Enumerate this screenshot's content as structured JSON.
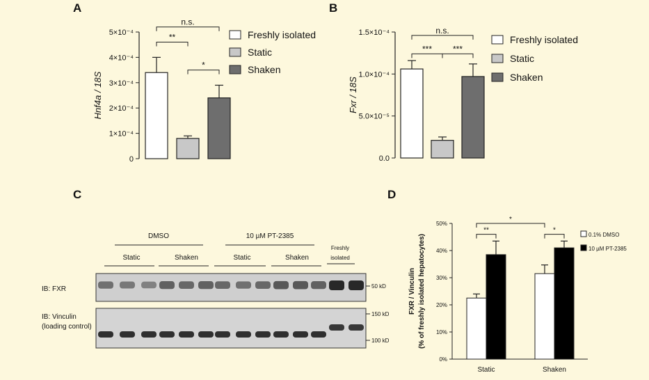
{
  "panels": {
    "a": {
      "letter": "A"
    },
    "b": {
      "letter": "B"
    },
    "c": {
      "letter": "C"
    },
    "d": {
      "letter": "D"
    }
  },
  "chart_data": [
    {
      "id": "A",
      "type": "bar",
      "ylabel": "Hnf4a / 18S",
      "ylim": [
        0,
        0.0005
      ],
      "yticks": [
        {
          "value": 0,
          "label": "0"
        },
        {
          "value": 0.0001,
          "label": "1×10⁻⁴"
        },
        {
          "value": 0.0002,
          "label": "2×10⁻⁴"
        },
        {
          "value": 0.0003,
          "label": "3×10⁻⁴"
        },
        {
          "value": 0.0004,
          "label": "4×10⁻⁴"
        },
        {
          "value": 0.0005,
          "label": "5×10⁻⁴"
        }
      ],
      "categories": [
        "Freshly isolated",
        "Static",
        "Shaken"
      ],
      "values": [
        0.00034,
        8e-05,
        0.00024
      ],
      "errors": [
        6e-05,
        1e-05,
        5e-05
      ],
      "colors": [
        "#ffffff",
        "#c8c8c8",
        "#6e6e6e"
      ],
      "legend": [
        "Freshly isolated",
        "Static",
        "Shaken"
      ],
      "significance": [
        {
          "from": 0,
          "to": 1,
          "label": "**",
          "level": 0.00046
        },
        {
          "from": 1,
          "to": 2,
          "label": "*",
          "level": 0.00035
        },
        {
          "from": 0,
          "to": 2,
          "label": "n.s.",
          "level": 0.00052
        }
      ]
    },
    {
      "id": "B",
      "type": "bar",
      "ylabel": "Fxr / 18S",
      "ylim": [
        0,
        0.00015
      ],
      "yticks": [
        {
          "value": 0,
          "label": "0.0"
        },
        {
          "value": 5e-05,
          "label": "5.0×10⁻⁵"
        },
        {
          "value": 0.0001,
          "label": "1.0×10⁻⁴"
        },
        {
          "value": 0.00015,
          "label": "1.5×10⁻⁴"
        }
      ],
      "categories": [
        "Freshly isolated",
        "Static",
        "Shaken"
      ],
      "values": [
        0.000106,
        2.1e-05,
        9.7e-05
      ],
      "errors": [
        1e-05,
        4e-06,
        1.5e-05
      ],
      "colors": [
        "#ffffff",
        "#c8c8c8",
        "#6e6e6e"
      ],
      "legend": [
        "Freshly isolated",
        "Static",
        "Shaken"
      ],
      "significance": [
        {
          "from": 0,
          "to": 1,
          "label": "***",
          "level": 0.000124
        },
        {
          "from": 1,
          "to": 2,
          "label": "***",
          "level": 0.000124
        },
        {
          "from": 0,
          "to": 2,
          "label": "n.s.",
          "level": 0.000146
        }
      ]
    },
    {
      "id": "D",
      "type": "bar",
      "ylabel": "FXR / Vinculin",
      "ylabel2": "(% of freshly isolated hepatocytes)",
      "ylim": [
        0,
        50
      ],
      "yticks": [
        {
          "value": 0,
          "label": "0%"
        },
        {
          "value": 10,
          "label": "10%"
        },
        {
          "value": 20,
          "label": "20%"
        },
        {
          "value": 30,
          "label": "30%"
        },
        {
          "value": 40,
          "label": "40%"
        },
        {
          "value": 50,
          "label": "50%"
        }
      ],
      "categories": [
        "Static",
        "Shaken"
      ],
      "series": [
        {
          "name": "0.1% DMSO",
          "values": [
            22.5,
            31.5
          ],
          "errors": [
            1.5,
            3.2
          ],
          "color": "#ffffff"
        },
        {
          "name": "10 µM PT-2385",
          "values": [
            38.5,
            41
          ],
          "errors": [
            5,
            2.5
          ],
          "color": "#000000"
        }
      ],
      "significance": [
        {
          "group": 0,
          "label": "**",
          "level": 46
        },
        {
          "group": 1,
          "label": "*",
          "level": 46
        },
        {
          "between_groups": true,
          "label": "*",
          "level": 50
        }
      ]
    }
  ],
  "blot": {
    "group_dmso": "DMSO",
    "group_pt": "10 µM PT-2385",
    "group_fresh_1": "Freshly",
    "group_fresh_2": "isolated",
    "sub_static_1": "Static",
    "sub_shaken_1": "Shaken",
    "sub_static_2": "Static",
    "sub_shaken_2": "Shaken",
    "fxr_label": "IB: FXR",
    "vinc_label_1": "IB: Vinculin",
    "vinc_label_2": "(loading control)",
    "marker_50": "50 kD",
    "marker_150": "150 kD",
    "marker_100": "100 kD",
    "fxr_band_intensity": [
      0.55,
      0.5,
      0.45,
      0.65,
      0.6,
      0.65,
      0.6,
      0.55,
      0.6,
      0.7,
      0.7,
      0.65,
      1.0,
      1.0
    ],
    "vinc_band_intensity": [
      0.9,
      0.9,
      0.9,
      0.9,
      0.9,
      0.9,
      0.9,
      0.9,
      0.9,
      0.9,
      0.9,
      0.9,
      0.85,
      0.85
    ]
  }
}
